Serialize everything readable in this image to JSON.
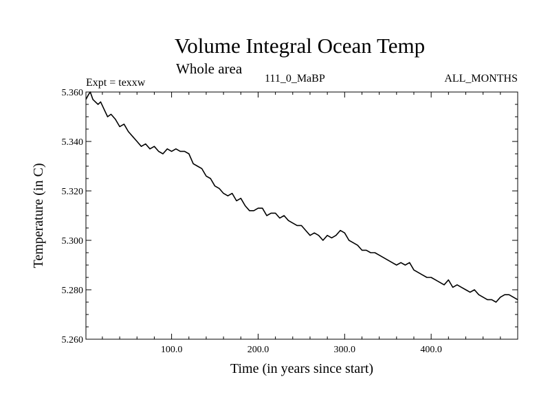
{
  "chart_data": {
    "type": "line",
    "title": "Volume Integral Ocean Temp",
    "subtitle": "Whole area",
    "expt_label": "Expt = texxw",
    "run_label": "111_0_MaBP",
    "months_label": "ALL_MONTHS",
    "xlabel": "Time (in years since start)",
    "ylabel": "Temperature (in C)",
    "xlim": [
      1,
      500
    ],
    "ylim": [
      5.26,
      5.36
    ],
    "x_ticks": [
      100,
      200,
      300,
      400
    ],
    "x_tick_labels": [
      "100.0",
      "200.0",
      "300.0",
      "400.0"
    ],
    "y_ticks": [
      5.26,
      5.28,
      5.3,
      5.32,
      5.34,
      5.36
    ],
    "y_tick_labels": [
      "5.260",
      "5.280",
      "5.300",
      "5.320",
      "5.340",
      "5.360"
    ],
    "series": [
      {
        "name": "Volume Integral Ocean Temp",
        "x": [
          1,
          4,
          6,
          9,
          12,
          15,
          18,
          22,
          26,
          30,
          35,
          40,
          45,
          50,
          55,
          60,
          65,
          70,
          75,
          80,
          85,
          90,
          95,
          100,
          105,
          110,
          115,
          120,
          125,
          130,
          135,
          140,
          145,
          150,
          155,
          160,
          165,
          170,
          175,
          180,
          185,
          190,
          195,
          200,
          205,
          210,
          215,
          220,
          225,
          230,
          235,
          240,
          245,
          250,
          255,
          260,
          265,
          270,
          275,
          280,
          285,
          290,
          295,
          300,
          305,
          310,
          315,
          320,
          325,
          330,
          335,
          340,
          345,
          350,
          355,
          360,
          365,
          370,
          375,
          380,
          385,
          390,
          395,
          400,
          405,
          410,
          415,
          420,
          425,
          430,
          435,
          440,
          445,
          450,
          455,
          460,
          465,
          470,
          475,
          480,
          485,
          490,
          495,
          500
        ],
        "y": [
          5.357,
          5.359,
          5.36,
          5.357,
          5.356,
          5.355,
          5.356,
          5.353,
          5.35,
          5.351,
          5.349,
          5.346,
          5.347,
          5.344,
          5.342,
          5.34,
          5.338,
          5.339,
          5.337,
          5.338,
          5.336,
          5.335,
          5.337,
          5.336,
          5.337,
          5.336,
          5.336,
          5.335,
          5.331,
          5.33,
          5.329,
          5.326,
          5.325,
          5.322,
          5.321,
          5.319,
          5.318,
          5.319,
          5.316,
          5.317,
          5.314,
          5.312,
          5.312,
          5.313,
          5.313,
          5.31,
          5.311,
          5.311,
          5.309,
          5.31,
          5.308,
          5.307,
          5.306,
          5.306,
          5.304,
          5.302,
          5.303,
          5.302,
          5.3,
          5.302,
          5.301,
          5.302,
          5.304,
          5.303,
          5.3,
          5.299,
          5.298,
          5.296,
          5.296,
          5.295,
          5.295,
          5.294,
          5.293,
          5.292,
          5.291,
          5.29,
          5.291,
          5.29,
          5.291,
          5.288,
          5.287,
          5.286,
          5.285,
          5.285,
          5.284,
          5.283,
          5.282,
          5.284,
          5.281,
          5.282,
          5.281,
          5.28,
          5.279,
          5.28,
          5.278,
          5.277,
          5.276,
          5.276,
          5.275,
          5.277,
          5.278,
          5.278,
          5.277,
          5.276
        ]
      }
    ]
  }
}
